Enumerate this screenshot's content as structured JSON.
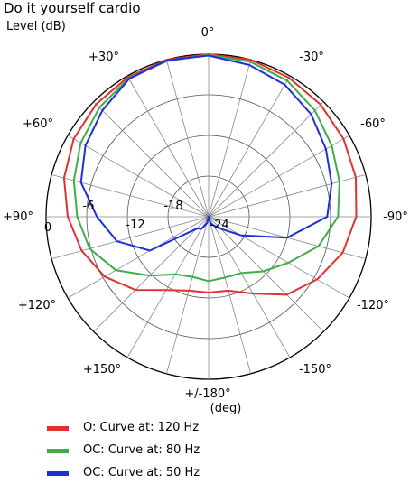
{
  "chart_data": {
    "type": "polar",
    "title": "Do it yourself cardio",
    "radial_axis_label": "Level (dB)",
    "radial_range_db": [
      -24,
      0
    ],
    "radial_rings_db": [
      0,
      -6,
      -12,
      -18,
      -24
    ],
    "radial_tick_labels": [
      "0",
      "-6",
      "-12",
      "-18",
      "-24"
    ],
    "angle_unit_label": "(deg)",
    "angle_tick_labels": [
      {
        "angle": 0,
        "label": "0°"
      },
      {
        "angle": 30,
        "label": "-30°"
      },
      {
        "angle": 60,
        "label": "-60°"
      },
      {
        "angle": 90,
        "label": "-90°"
      },
      {
        "angle": 120,
        "label": "-120°"
      },
      {
        "angle": 150,
        "label": "-150°"
      },
      {
        "angle": 180,
        "label": "+/-180°"
      },
      {
        "angle": 210,
        "label": "+150°"
      },
      {
        "angle": 240,
        "label": "+120°"
      },
      {
        "angle": 270,
        "label": "+90°"
      },
      {
        "angle": 300,
        "label": "+60°"
      },
      {
        "angle": 330,
        "label": "+30°"
      }
    ],
    "spoke_step_deg": 15,
    "angles_deg": [
      0,
      15,
      30,
      45,
      60,
      75,
      90,
      105,
      120,
      135,
      150,
      165,
      180,
      195,
      210,
      225,
      240,
      255,
      270,
      285,
      300,
      315,
      330,
      345
    ],
    "series": [
      {
        "name": "O: Curve at: 120 Hz",
        "color": "#e03030",
        "values_db": [
          0,
          0,
          -0.3,
          -0.6,
          -1.0,
          -1.5,
          -2.2,
          -3.5,
          -5.5,
          -7.7,
          -10.9,
          -12.7,
          -12.8,
          -12.7,
          -11.5,
          -8.7,
          -6.3,
          -4.6,
          -3.2,
          -1.9,
          -1.0,
          -0.5,
          -0.2,
          0
        ]
      },
      {
        "name": "OC: Curve at: 80 Hz",
        "color": "#3fae48",
        "values_db": [
          -0.1,
          -0.3,
          -0.8,
          -1.8,
          -3.0,
          -4.0,
          -4.9,
          -7.2,
          -10.4,
          -12.6,
          -14.4,
          -14.7,
          -14.5,
          -14.8,
          -14.2,
          -11.7,
          -8.2,
          -5.8,
          -4.6,
          -3.4,
          -2.2,
          -1.2,
          -0.4,
          -0.2
        ]
      },
      {
        "name": "OC: Curve at: 50 Hz",
        "color": "#1c2fd8",
        "values_db": [
          -0.2,
          -0.8,
          -1.5,
          -2.6,
          -4.0,
          -5.2,
          -6.5,
          -12.0,
          -18.5,
          -21.5,
          -22.5,
          -23.0,
          -24.0,
          -23.0,
          -22.0,
          -21.5,
          -14.0,
          -10.0,
          -7.5,
          -4.5,
          -3.0,
          -1.8,
          -0.5,
          -0.1
        ]
      }
    ],
    "legend_position": "bottom-left",
    "grid": true
  }
}
